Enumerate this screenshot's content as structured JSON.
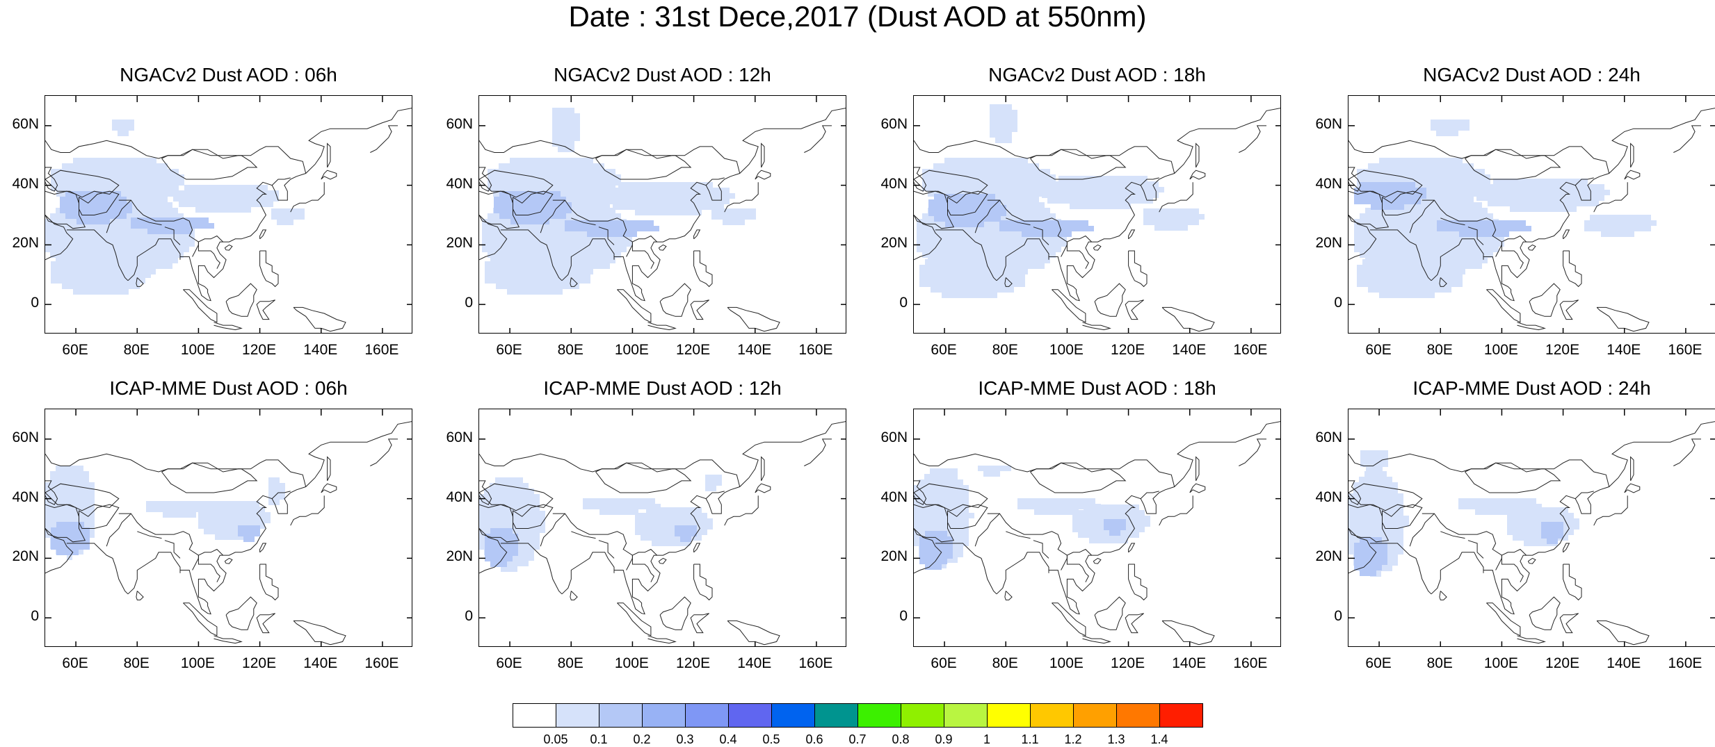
{
  "title": "Date : 31st Dece,2017 (Dust AOD at 550nm)",
  "panels": [
    {
      "title": "NGACv2 Dust AOD : 06h",
      "model": "NGACv2",
      "hour": "06h"
    },
    {
      "title": "NGACv2 Dust AOD : 12h",
      "model": "NGACv2",
      "hour": "12h"
    },
    {
      "title": "NGACv2 Dust AOD : 18h",
      "model": "NGACv2",
      "hour": "18h"
    },
    {
      "title": "NGACv2 Dust AOD : 24h",
      "model": "NGACv2",
      "hour": "24h"
    },
    {
      "title": "ICAP-MME Dust AOD : 06h",
      "model": "ICAP-MME",
      "hour": "06h"
    },
    {
      "title": "ICAP-MME Dust AOD : 12h",
      "model": "ICAP-MME",
      "hour": "12h"
    },
    {
      "title": "ICAP-MME Dust AOD : 18h",
      "model": "ICAP-MME",
      "hour": "18h"
    },
    {
      "title": "ICAP-MME Dust AOD : 24h",
      "model": "ICAP-MME",
      "hour": "24h"
    }
  ],
  "map": {
    "lon_ticks": [
      "60E",
      "80E",
      "100E",
      "120E",
      "140E",
      "160E"
    ],
    "lat_ticks": [
      "60N",
      "40N",
      "20N",
      "0"
    ],
    "lon_range": [
      50,
      170
    ],
    "lat_range": [
      -10,
      70
    ]
  },
  "colorbar": {
    "labels": [
      "0.05",
      "0.1",
      "0.2",
      "0.3",
      "0.4",
      "0.5",
      "0.6",
      "0.7",
      "0.8",
      "0.9",
      "1",
      "1.1",
      "1.2",
      "1.3",
      "1.4"
    ],
    "colors": [
      "#ffffff",
      "#d6e2fa",
      "#b4c8f6",
      "#98b2f5",
      "#7f97f5",
      "#6066f0",
      "#0063ef",
      "#00948f",
      "#3cf000",
      "#8ff000",
      "#b9f541",
      "#ffff00",
      "#ffc800",
      "#ffa000",
      "#ff7800",
      "#ff1e00"
    ]
  }
}
